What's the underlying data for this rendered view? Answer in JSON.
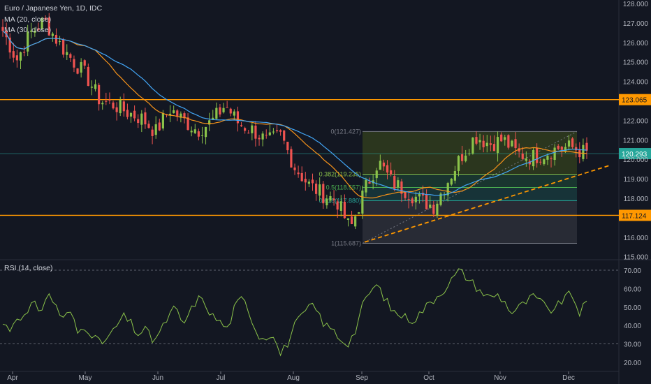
{
  "legend": {
    "title": "Euro / Japanese Yen, 1D, IDC",
    "ma20": "MA (20, close)",
    "ma30": "MA (30, close)",
    "rsi": "RSI (14, close)"
  },
  "colors": {
    "background": "#131722",
    "up": "#26a69a",
    "up_candle": "#8bc34a",
    "down": "#ef5350",
    "ma20": "#f7931a",
    "ma30": "#42a5f5",
    "hline": "#ff9800",
    "rsi": "#8bc34a"
  },
  "chart_data": [
    {
      "type": "candlestick",
      "title": "Euro / Japanese Yen, 1D, IDC",
      "y_ticks": [
        "128.000",
        "127.000",
        "126.000",
        "125.000",
        "124.000",
        "122.000",
        "121.000",
        "120.000",
        "119.000",
        "118.000",
        "116.000",
        "115.000"
      ],
      "ylim": [
        114.6,
        128.1
      ],
      "x_ticks": [
        "Apr",
        "May",
        "Jun",
        "Jul",
        "Aug",
        "Sep",
        "Oct",
        "Nov",
        "Dec"
      ],
      "horizontal_levels": [
        {
          "label": "123.065",
          "value": 123.065
        },
        {
          "label": "117.124",
          "value": 117.124
        }
      ],
      "last_price": {
        "label": "120.293",
        "value": 120.293
      },
      "fibonacci": [
        {
          "label": "0(121.427)",
          "value": 121.427
        },
        {
          "label": "0.382(119.235)",
          "value": 119.235
        },
        {
          "label": "0.5(118.557)",
          "value": 118.557
        },
        {
          "label": "0.618(117.880)",
          "value": 117.88
        },
        {
          "label": "1(115.687)",
          "value": 115.687
        }
      ],
      "close_path": [
        126.6,
        125.1,
        126.5,
        127.1,
        126.0,
        125.1,
        124.3,
        123.0,
        122.8,
        122.4,
        122.1,
        121.4,
        122.6,
        122.0,
        121.5,
        121.9,
        122.8,
        121.8,
        121.5,
        120.9,
        121.2,
        119.6,
        118.7,
        118.2,
        117.9,
        116.4,
        118.4,
        119.9,
        118.8,
        118.4,
        117.9,
        117.6,
        118.9,
        120.2,
        121.2,
        120.8,
        121.0,
        120.3,
        120.1,
        120.3,
        120.6,
        120.6,
        120.3
      ],
      "series": [
        {
          "name": "MA (20, close)"
        },
        {
          "name": "MA (30, close)"
        }
      ]
    },
    {
      "type": "line",
      "title": "RSI (14, close)",
      "y_ticks": [
        "70.00",
        "60.00",
        "50.00",
        "40.00",
        "30.00",
        "20.00"
      ],
      "ylim": [
        17,
        73
      ],
      "levels": [
        70,
        30
      ],
      "series": [
        {
          "name": "RSI (14, close)",
          "values": [
            41,
            38,
            46,
            44,
            52,
            48,
            57,
            52,
            43,
            48,
            36,
            40,
            35,
            30,
            33,
            38,
            45,
            42,
            35,
            38,
            32,
            36,
            44,
            50,
            40,
            47,
            55,
            52,
            45,
            42,
            38,
            50,
            55,
            47,
            35,
            33,
            37,
            24,
            30,
            40,
            45,
            51,
            48,
            40,
            38,
            33,
            30,
            36,
            50,
            58,
            62,
            55,
            48,
            46,
            44,
            43,
            48,
            52,
            56,
            60,
            65,
            70,
            66,
            62,
            58,
            55,
            57,
            53,
            47,
            50,
            53,
            56,
            52,
            48,
            50,
            55,
            57,
            47,
            52
          ]
        }
      ]
    }
  ]
}
